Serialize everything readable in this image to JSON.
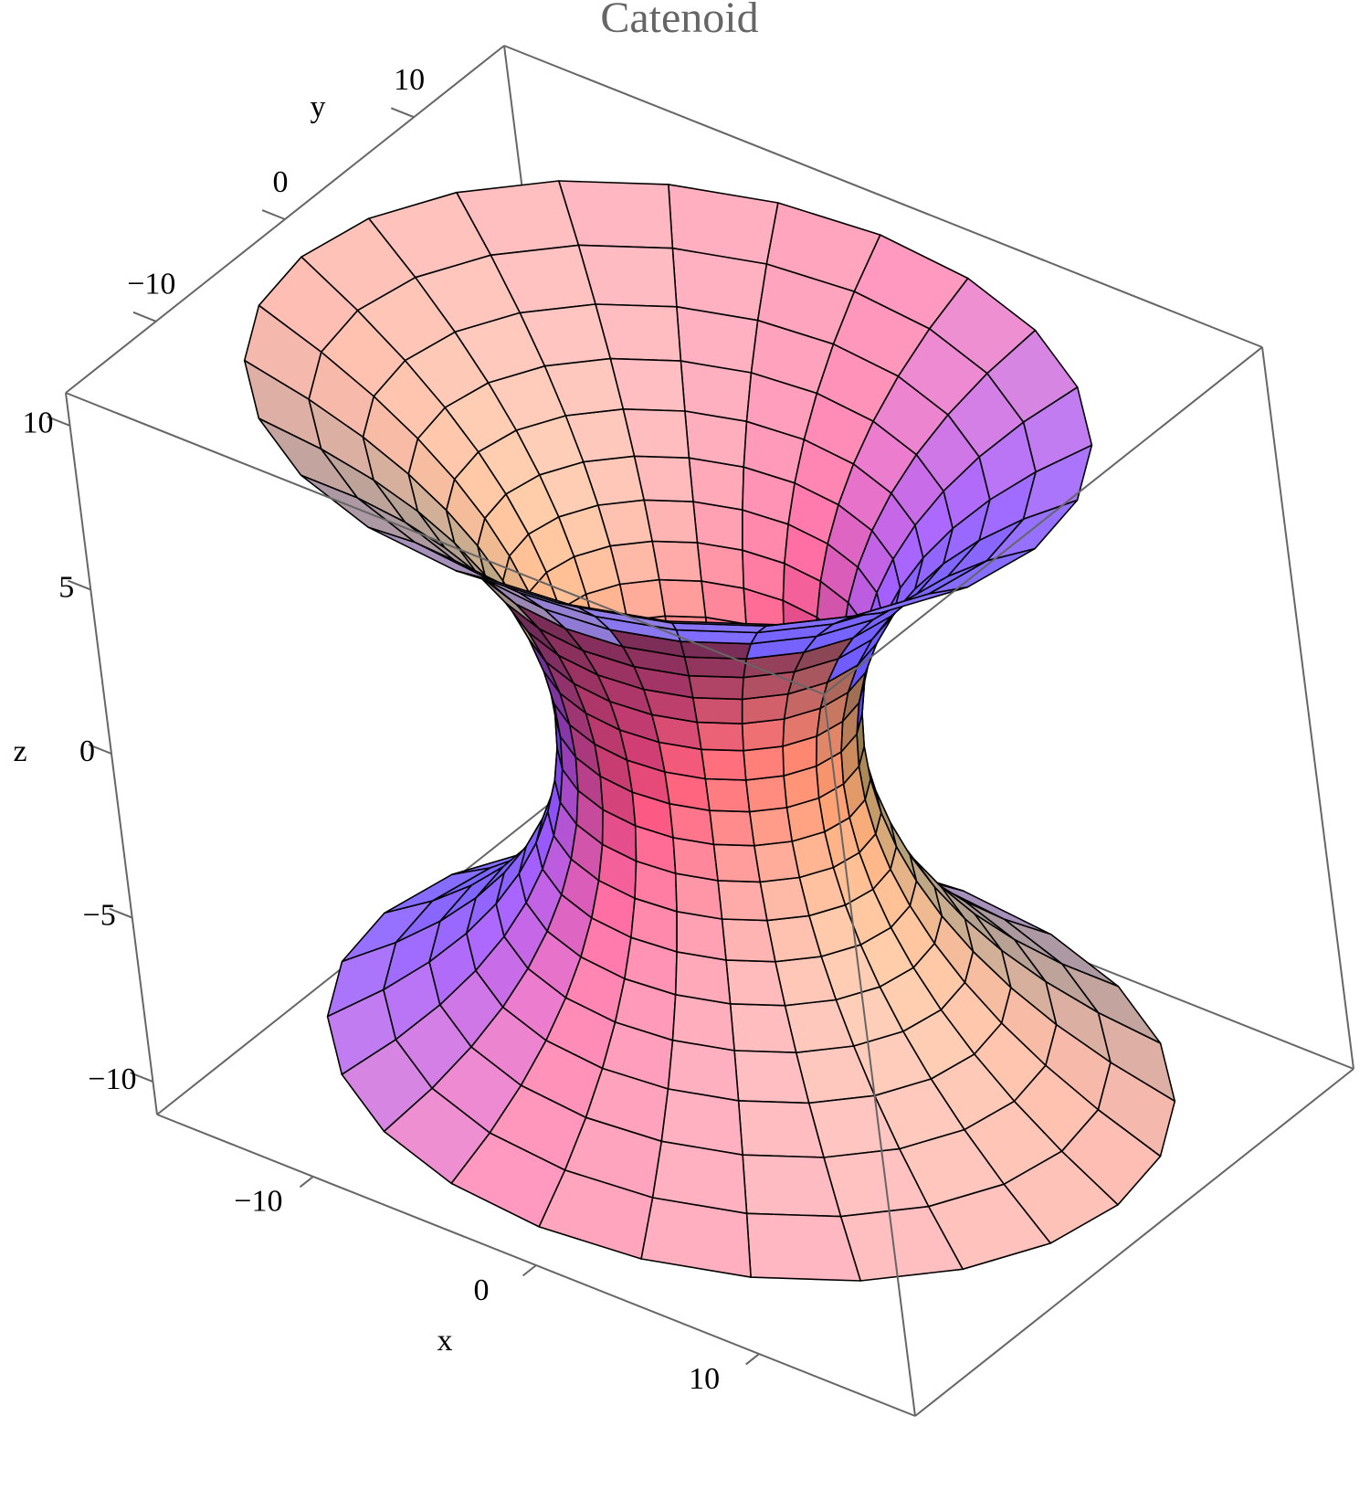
{
  "chart_data": {
    "type": "surface3d",
    "title": "Catenoid",
    "xlabel": "x",
    "ylabel": "y",
    "zlabel": "z",
    "xlim": [
      -17,
      17
    ],
    "ylim": [
      -17,
      17
    ],
    "zlim": [
      -11,
      11
    ],
    "xticks": [
      {
        "value": -10,
        "label": "−10"
      },
      0,
      10
    ],
    "yticks": [
      {
        "value": -10,
        "label": "−10"
      },
      0,
      10
    ],
    "zticks": [
      {
        "value": -10,
        "label": "−10"
      },
      {
        "value": -5,
        "label": "−5"
      },
      0,
      5,
      10
    ],
    "surface": {
      "a": 6,
      "v": [
        -10,
        10
      ],
      "mesh": [
        24,
        20
      ]
    }
  }
}
